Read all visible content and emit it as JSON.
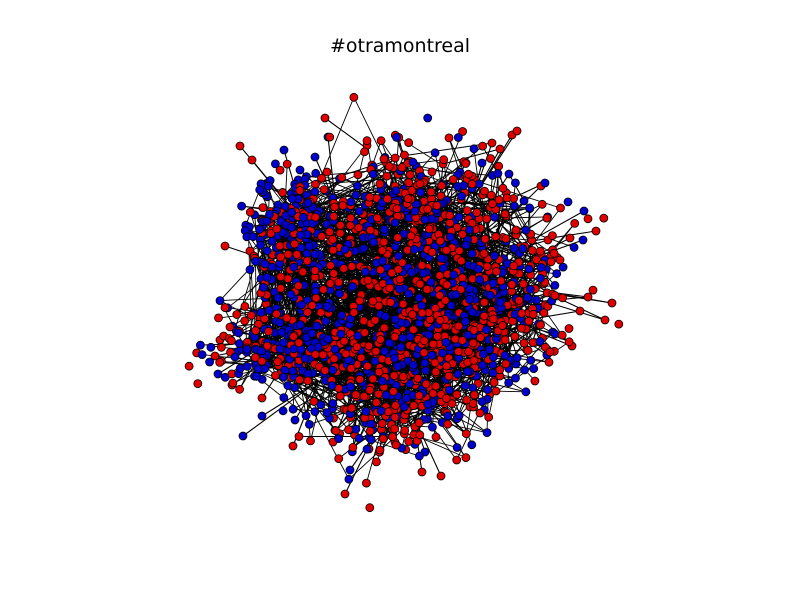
{
  "figure": {
    "title": "#otramontreal"
  },
  "graph": {
    "node_colors": {
      "group_a": "#e00000",
      "group_b": "#0000cc"
    },
    "node_outline_color": "#000000",
    "edge_color": "#000000"
  }
}
